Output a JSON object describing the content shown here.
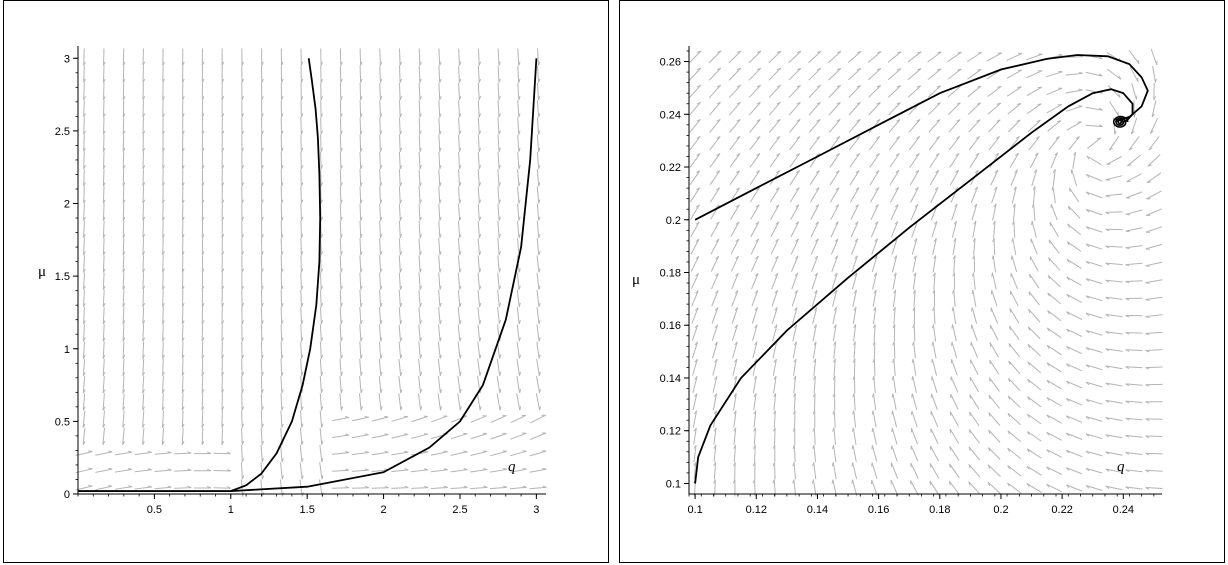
{
  "chart_data": [
    {
      "type": "line",
      "subtype": "phase-portrait",
      "title": "",
      "xlabel": "q",
      "ylabel": "μ",
      "xlim": [
        0,
        3.05
      ],
      "ylim": [
        0,
        3.05
      ],
      "x_ticks": [
        0.5,
        1,
        1.5,
        2,
        2.5,
        3
      ],
      "x_tick_labels": [
        "0.5",
        "1",
        "1.5",
        "2",
        "2.5",
        "3"
      ],
      "y_ticks": [
        0,
        0.5,
        1,
        1.5,
        2,
        2.5,
        3
      ],
      "y_tick_labels": [
        "0",
        "0.5",
        "1",
        "1.5",
        "2",
        "2.5",
        "3"
      ],
      "grid": false,
      "legend": "none",
      "arrow_field_color": "#b4b4b4",
      "trajectory_color": "#000000",
      "series": [
        {
          "x": [
            0,
            0.5,
            0.8,
            0.95,
            1.0,
            1.1,
            1.2,
            1.3,
            1.4,
            1.47,
            1.52,
            1.56,
            1.58,
            1.585,
            1.58,
            1.57,
            1.555,
            1.53,
            1.51
          ],
          "y": [
            0.02,
            0.02,
            0.02,
            0.02,
            0.02,
            0.06,
            0.14,
            0.28,
            0.5,
            0.75,
            1.0,
            1.3,
            1.6,
            1.9,
            2.2,
            2.45,
            2.65,
            2.85,
            3.0
          ]
        },
        {
          "x": [
            0,
            0.5,
            1.0,
            1.5,
            2.0,
            2.3,
            2.5,
            2.65,
            2.8,
            2.9,
            2.96,
            3.0
          ],
          "y": [
            0.02,
            0.02,
            0.02,
            0.05,
            0.15,
            0.32,
            0.5,
            0.75,
            1.2,
            1.7,
            2.3,
            3.0
          ]
        }
      ]
    },
    {
      "type": "line",
      "subtype": "phase-portrait",
      "title": "",
      "xlabel": "q",
      "ylabel": "μ",
      "xlim": [
        0.098,
        0.252
      ],
      "ylim": [
        0.096,
        0.264
      ],
      "x_ticks": [
        0.1,
        0.12,
        0.14,
        0.16,
        0.18,
        0.2,
        0.22,
        0.24
      ],
      "x_tick_labels": [
        "0.1",
        "0.12",
        "0.14",
        "0.16",
        "0.18",
        "0.2",
        "0.22",
        "0.24"
      ],
      "y_ticks": [
        0.1,
        0.12,
        0.14,
        0.16,
        0.18,
        0.2,
        0.22,
        0.24,
        0.26
      ],
      "y_tick_labels": [
        "0.1",
        "0.12",
        "0.14",
        "0.16",
        "0.18",
        "0.2",
        "0.22",
        "0.24",
        "0.26"
      ],
      "grid": false,
      "legend": "none",
      "arrow_field_color": "#b4b4b4",
      "trajectory_color": "#000000",
      "spiral_focus": [
        0.239,
        0.237
      ],
      "series": [
        {
          "x": [
            0.1,
            0.12,
            0.14,
            0.16,
            0.18,
            0.2,
            0.215,
            0.225,
            0.235,
            0.242,
            0.246,
            0.248,
            0.246,
            0.242,
            0.238,
            0.2375
          ],
          "y": [
            0.2,
            0.212,
            0.224,
            0.236,
            0.248,
            0.257,
            0.261,
            0.2625,
            0.262,
            0.259,
            0.254,
            0.249,
            0.243,
            0.239,
            0.2375,
            0.2385
          ]
        },
        {
          "x": [
            0.1,
            0.101,
            0.105,
            0.115,
            0.13,
            0.15,
            0.17,
            0.19,
            0.21,
            0.222,
            0.23,
            0.236,
            0.24,
            0.243,
            0.243,
            0.241,
            0.239
          ],
          "y": [
            0.1,
            0.11,
            0.122,
            0.14,
            0.158,
            0.178,
            0.197,
            0.215,
            0.233,
            0.243,
            0.248,
            0.2495,
            0.248,
            0.244,
            0.24,
            0.2375,
            0.237
          ]
        }
      ]
    }
  ]
}
